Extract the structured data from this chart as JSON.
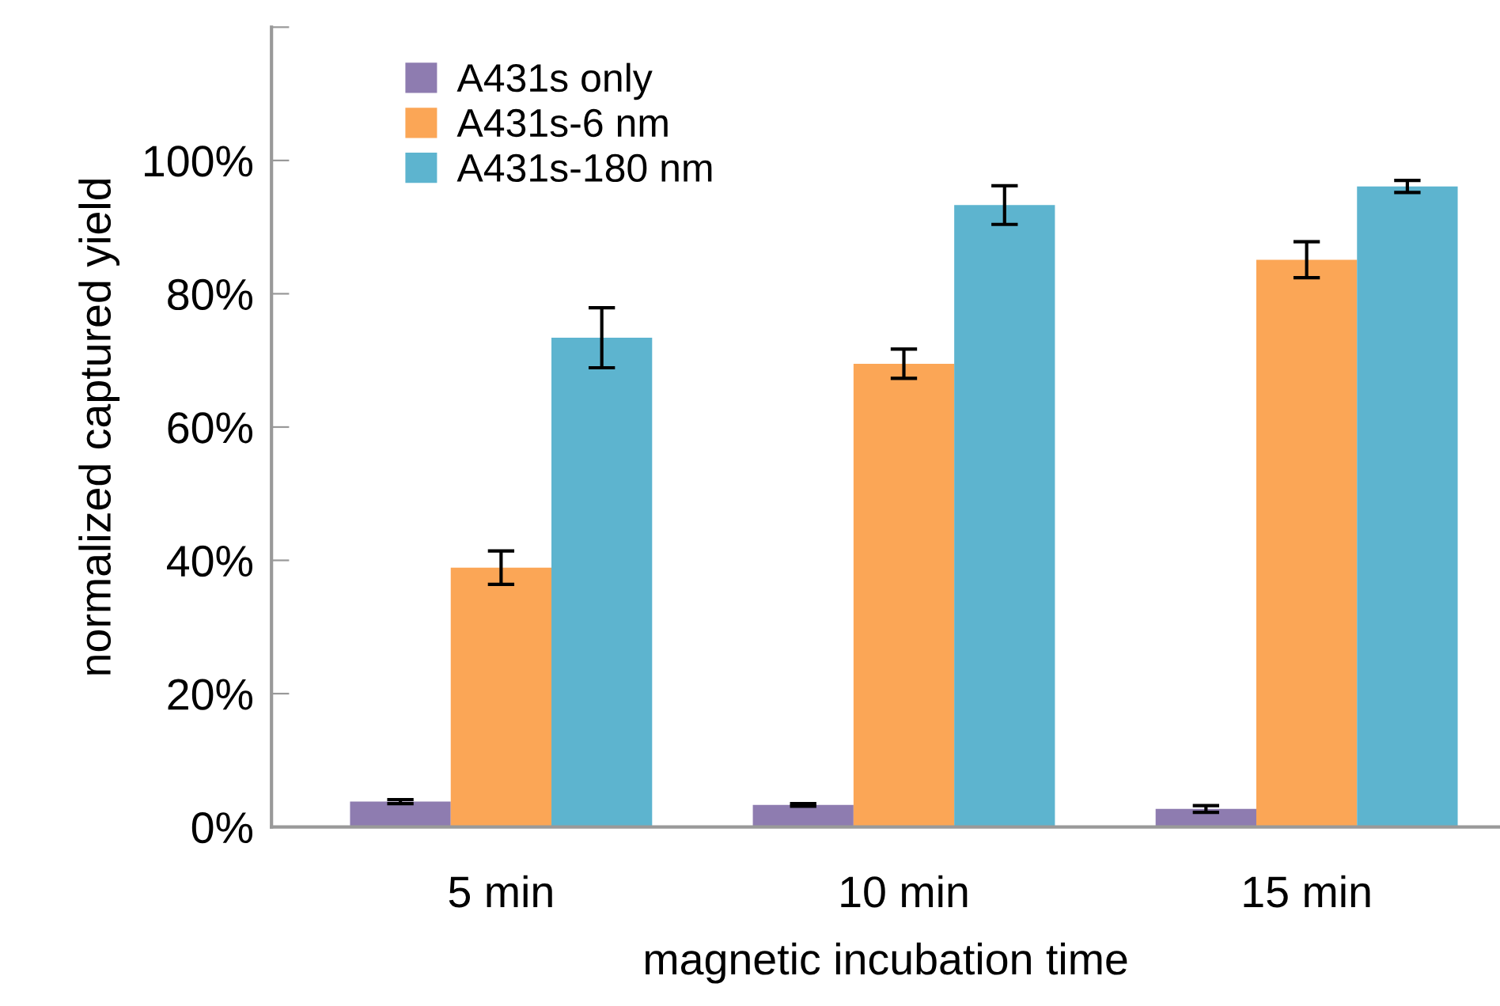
{
  "chart_data": {
    "type": "bar",
    "xlabel": "magnetic incubation time",
    "ylabel": "normalized captured yield",
    "categories": [
      "5 min",
      "10 min",
      "15 min"
    ],
    "series": [
      {
        "name": "A431s only",
        "color": "#8e7cb0",
        "values": [
          3.8,
          3.3,
          2.7
        ],
        "errors": [
          0.3,
          0.2,
          0.5
        ]
      },
      {
        "name": "A431s-6 nm",
        "color": "#fba656",
        "values": [
          38.9,
          69.5,
          85.1
        ],
        "errors": [
          2.5,
          2.2,
          2.7
        ]
      },
      {
        "name": "A431s-180 nm",
        "color": "#5db4cf",
        "values": [
          73.4,
          93.3,
          96.1
        ],
        "errors": [
          4.5,
          2.9,
          0.9
        ]
      }
    ],
    "ylim": [
      0,
      120
    ],
    "yticks": [
      {
        "value": 0,
        "label": "0%"
      },
      {
        "value": 20,
        "label": "20%"
      },
      {
        "value": 40,
        "label": "40%"
      },
      {
        "value": 60,
        "label": "60%"
      },
      {
        "value": 80,
        "label": "80%"
      },
      {
        "value": 100,
        "label": "100%"
      },
      {
        "value": 120,
        "label": null
      }
    ],
    "grid": false,
    "legend": "top left"
  }
}
